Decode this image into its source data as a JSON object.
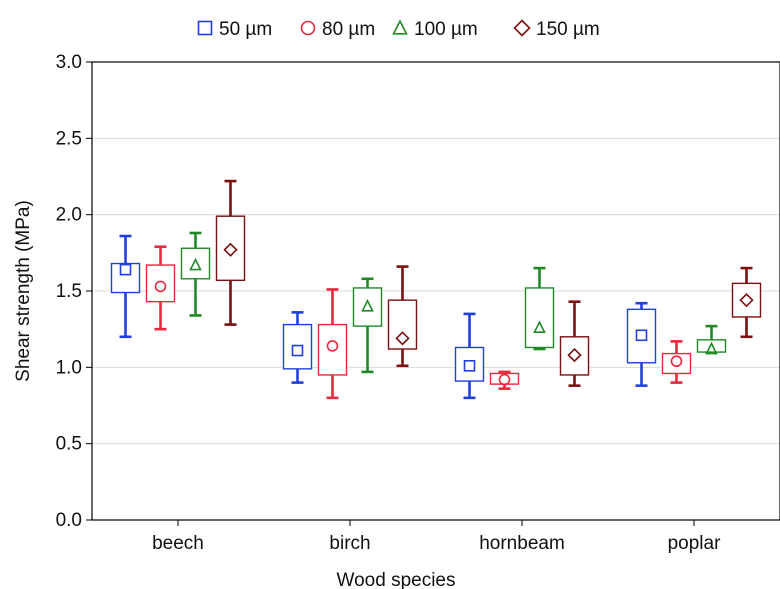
{
  "chart_data": {
    "type": "box",
    "xlabel": "Wood species",
    "ylabel": "Shear strength (MPa)",
    "ylim": [
      0,
      3.0
    ],
    "yticks": [
      "0.0",
      "0.5",
      "1.0",
      "1.5",
      "2.0",
      "2.5",
      "3.0"
    ],
    "grid": "horizontal",
    "legend_placement": "top",
    "categories": [
      "beech",
      "birch",
      "hornbeam",
      "poplar"
    ],
    "series": [
      {
        "name": "50 µm",
        "color": "#1f3fe0",
        "marker": "square",
        "boxes": [
          {
            "min": 1.2,
            "q1": 1.49,
            "center": 1.64,
            "q3": 1.68,
            "max": 1.86
          },
          {
            "min": 0.9,
            "q1": 0.99,
            "center": 1.11,
            "q3": 1.28,
            "max": 1.36
          },
          {
            "min": 0.8,
            "q1": 0.91,
            "center": 1.01,
            "q3": 1.13,
            "max": 1.35
          },
          {
            "min": 0.88,
            "q1": 1.03,
            "center": 1.21,
            "q3": 1.38,
            "max": 1.42
          }
        ]
      },
      {
        "name": "80 µm",
        "color": "#e8283c",
        "marker": "circle",
        "boxes": [
          {
            "min": 1.25,
            "q1": 1.43,
            "center": 1.53,
            "q3": 1.67,
            "max": 1.79
          },
          {
            "min": 0.8,
            "q1": 0.95,
            "center": 1.14,
            "q3": 1.28,
            "max": 1.51
          },
          {
            "min": 0.86,
            "q1": 0.89,
            "center": 0.92,
            "q3": 0.96,
            "max": 0.97
          },
          {
            "min": 0.9,
            "q1": 0.96,
            "center": 1.04,
            "q3": 1.09,
            "max": 1.17
          }
        ]
      },
      {
        "name": "100 µm",
        "color": "#1e8a26",
        "marker": "triangle",
        "boxes": [
          {
            "min": 1.34,
            "q1": 1.58,
            "center": 1.67,
            "q3": 1.78,
            "max": 1.88
          },
          {
            "min": 0.97,
            "q1": 1.27,
            "center": 1.4,
            "q3": 1.52,
            "max": 1.58
          },
          {
            "min": 1.12,
            "q1": 1.13,
            "center": 1.26,
            "q3": 1.52,
            "max": 1.65
          },
          {
            "min": 1.1,
            "q1": 1.1,
            "center": 1.12,
            "q3": 1.18,
            "max": 1.27
          }
        ]
      },
      {
        "name": "150 µm",
        "color": "#7a1010",
        "marker": "diamond",
        "boxes": [
          {
            "min": 1.28,
            "q1": 1.57,
            "center": 1.77,
            "q3": 1.99,
            "max": 2.22
          },
          {
            "min": 1.01,
            "q1": 1.12,
            "center": 1.19,
            "q3": 1.44,
            "max": 1.66
          },
          {
            "min": 0.88,
            "q1": 0.95,
            "center": 1.08,
            "q3": 1.2,
            "max": 1.43
          },
          {
            "min": 1.2,
            "q1": 1.33,
            "center": 1.44,
            "q3": 1.55,
            "max": 1.65
          }
        ]
      }
    ]
  }
}
